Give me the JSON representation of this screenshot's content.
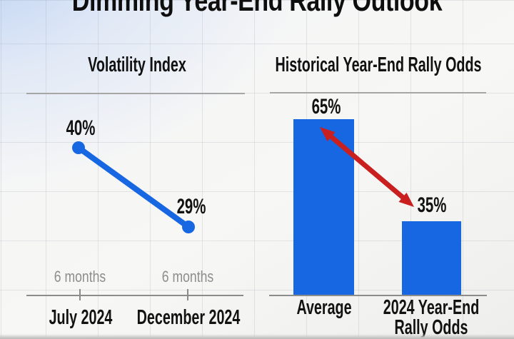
{
  "title": "Dimming Year-End Rally Outlook",
  "colors": {
    "blue": "#1767e2",
    "red": "#c9201f",
    "gray_text": "#8d8d8d",
    "axis_gray": "#8c8c8c"
  },
  "chart_data": [
    {
      "type": "line",
      "title": "Volatility Index",
      "x": [
        "July 2024",
        "December 2024"
      ],
      "values": [
        40,
        29
      ],
      "unit": "%",
      "point_labels": [
        "40%",
        "29%"
      ],
      "interval_labels": [
        "6 months",
        "6 months"
      ],
      "series_color": "#1767e2",
      "grid": true,
      "note": "single declining blue line with round endpoint markers"
    },
    {
      "type": "bar",
      "title": "Historical Year-End Rally Odds",
      "categories": [
        "Average",
        "2024 Year-End Rally Odds"
      ],
      "values": [
        65,
        35
      ],
      "unit": "%",
      "bar_labels": [
        "65%",
        "35%"
      ],
      "category_display": {
        "second_line1": "2024 Year-End",
        "second_line2": "Rally Odds"
      },
      "bar_color": "#1767e2",
      "ylim": [
        0,
        100
      ],
      "drawn_to_scale": false,
      "annotation": "red double-headed arrow pointing from top of Average bar down to the 35% bar label"
    }
  ]
}
